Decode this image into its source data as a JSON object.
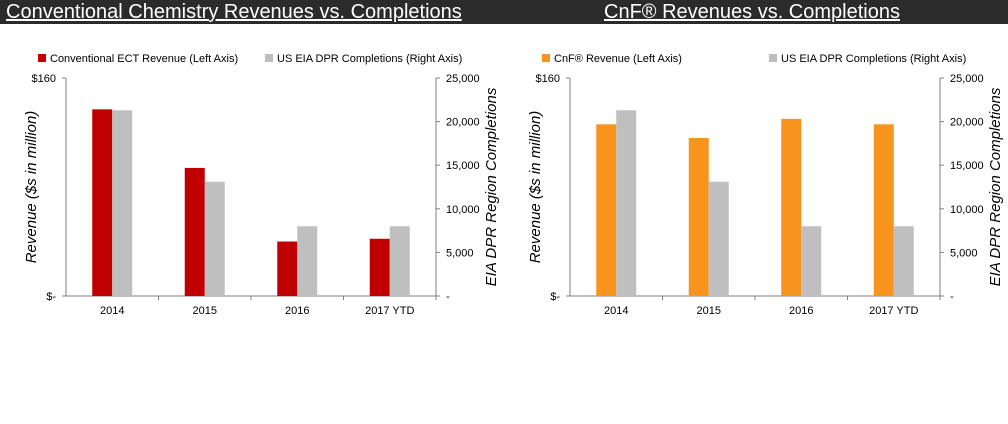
{
  "header": {
    "left_title": "Conventional Chemistry Revenues vs. Completions",
    "right_title": "CnF®  Revenues vs. Completions"
  },
  "colors": {
    "ect": "#c00000",
    "cnf": "#f7941d",
    "completions": "#bfbfbf",
    "header_bg": "#2b2b2b"
  },
  "chart_data": [
    {
      "type": "bar",
      "categories": [
        "2014",
        "2015",
        "2016",
        "2017 YTD"
      ],
      "series": [
        {
          "name": "Conventional ECT Revenue (Left Axis)",
          "axis": "left",
          "color": "#c00000",
          "values": [
            137,
            94,
            40,
            42
          ]
        },
        {
          "name": "US EIA DPR Completions (Right Axis)",
          "axis": "right",
          "color": "#bfbfbf",
          "values": [
            21300,
            13100,
            8000,
            8000
          ]
        }
      ],
      "left_axis": {
        "label": "Revenue ($s in million)",
        "range": [
          0,
          160
        ],
        "ticks": [
          {
            "value": 0,
            "label": "$-"
          },
          {
            "value": 160,
            "label": "$160"
          }
        ]
      },
      "right_axis": {
        "label": "EIA DPR Region Completions",
        "range": [
          0,
          25000
        ],
        "ticks": [
          {
            "value": 0,
            "label": "-"
          },
          {
            "value": 5000,
            "label": "5,000"
          },
          {
            "value": 10000,
            "label": "10,000"
          },
          {
            "value": 15000,
            "label": "15,000"
          },
          {
            "value": 20000,
            "label": "20,000"
          },
          {
            "value": 25000,
            "label": "25,000"
          }
        ]
      },
      "legend": "top",
      "grid": false
    },
    {
      "type": "bar",
      "categories": [
        "2014",
        "2015",
        "2016",
        "2017 YTD"
      ],
      "series": [
        {
          "name": "CnF® Revenue (Left Axis)",
          "axis": "left",
          "color": "#f7941d",
          "values": [
            126,
            116,
            130,
            126
          ]
        },
        {
          "name": "US EIA DPR Completions (Right Axis)",
          "axis": "right",
          "color": "#bfbfbf",
          "values": [
            21300,
            13100,
            8000,
            8000
          ]
        }
      ],
      "left_axis": {
        "label": "Revenue ($s in million)",
        "range": [
          0,
          160
        ],
        "ticks": [
          {
            "value": 0,
            "label": "$-"
          },
          {
            "value": 160,
            "label": "$160"
          }
        ]
      },
      "right_axis": {
        "label": "EIA DPR Region Completions",
        "range": [
          0,
          25000
        ],
        "ticks": [
          {
            "value": 0,
            "label": "-"
          },
          {
            "value": 5000,
            "label": "5,000"
          },
          {
            "value": 10000,
            "label": "10,000"
          },
          {
            "value": 15000,
            "label": "15,000"
          },
          {
            "value": 20000,
            "label": "20,000"
          },
          {
            "value": 25000,
            "label": "25,000"
          }
        ]
      },
      "legend": "top",
      "grid": false
    }
  ]
}
